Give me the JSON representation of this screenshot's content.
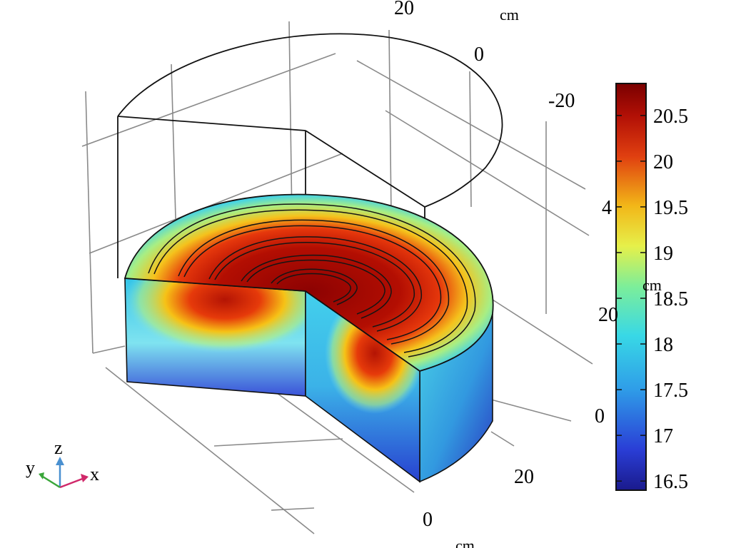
{
  "chart_data": {
    "type": "heatmap",
    "surface_type": "3D volume plot (cylinder with cutaway quarter)",
    "colormap": "rainbow",
    "colorbar": {
      "min": 16.4,
      "max": 20.85,
      "ticks": [
        "16.5",
        "17",
        "17.5",
        "18",
        "18.5",
        "19",
        "19.5",
        "20",
        "20.5"
      ],
      "tick_values": [
        16.5,
        17,
        17.5,
        18,
        18.5,
        19,
        19.5,
        20,
        20.5
      ],
      "placement": "right"
    },
    "axes": {
      "x": {
        "unit": "cm",
        "ticks": [
          "0",
          "20"
        ]
      },
      "y": {
        "unit": "cm",
        "ticks": [
          "20",
          "0",
          "-20"
        ]
      },
      "z": {
        "unit": "cm",
        "ticks": [
          "4",
          "20",
          "0"
        ]
      }
    },
    "grid": true,
    "triad": {
      "x": "x",
      "y": "y",
      "z": "z"
    }
  },
  "labels": {
    "y_tick_top": "20",
    "y_unit_top": "cm",
    "y_tick_0": "0",
    "y_tick_m20": "-20",
    "z_tick_4": "4",
    "z_unit": "cm",
    "z_tick_20": "20",
    "z_tick_0": "0",
    "x_tick_20": "20",
    "x_tick_0": "0",
    "x_unit_bottom": "cm"
  }
}
